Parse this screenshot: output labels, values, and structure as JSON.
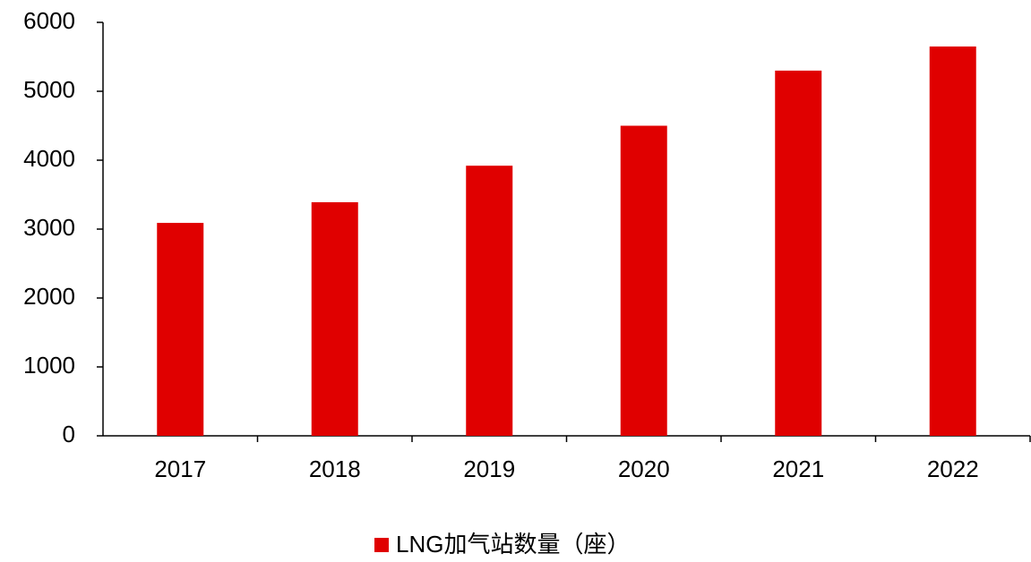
{
  "chart_data": {
    "type": "bar",
    "categories": [
      "2017",
      "2018",
      "2019",
      "2020",
      "2021",
      "2022"
    ],
    "series": [
      {
        "name": "LNG加气站数量（座）",
        "color": "#e00000",
        "values": [
          3090,
          3390,
          3920,
          4500,
          5300,
          5650
        ]
      }
    ],
    "ylim": [
      0,
      6000
    ],
    "yticks": [
      0,
      1000,
      2000,
      3000,
      4000,
      5000,
      6000
    ],
    "grid": false,
    "legend": "bottom"
  }
}
